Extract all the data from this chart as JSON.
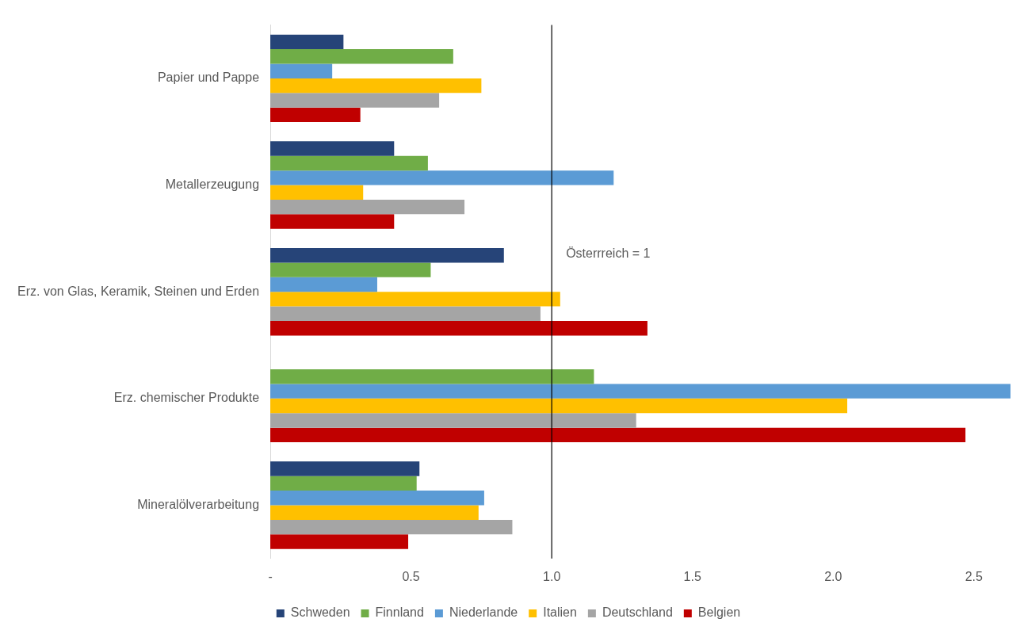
{
  "chart_data": {
    "type": "bar",
    "orientation": "horizontal",
    "categories": [
      "Papier und Pappe",
      "Metallerzeugung",
      "Erz. von Glas, Keramik, Steinen und Erden",
      "Erz. chemischer Produkte",
      "Mineralölverarbeitung"
    ],
    "series": [
      {
        "name": "Schweden",
        "color": "#264478",
        "values": [
          0.26,
          0.44,
          0.83,
          null,
          0.53
        ]
      },
      {
        "name": "Finnland",
        "color": "#70ad47",
        "values": [
          0.65,
          0.56,
          0.57,
          1.15,
          0.52
        ]
      },
      {
        "name": "Niederlande",
        "color": "#5b9bd5",
        "values": [
          0.22,
          1.22,
          0.38,
          2.63,
          0.76
        ]
      },
      {
        "name": "Italien",
        "color": "#ffc000",
        "values": [
          0.75,
          0.33,
          1.03,
          2.05,
          0.74
        ]
      },
      {
        "name": "Deutschland",
        "color": "#a5a5a5",
        "values": [
          0.6,
          0.69,
          0.96,
          1.3,
          0.86
        ]
      },
      {
        "name": "Belgien",
        "color": "#c00000",
        "values": [
          0.32,
          0.44,
          1.34,
          2.47,
          0.49
        ]
      }
    ],
    "xlim": [
      0,
      2.63
    ],
    "xticks": [
      {
        "value": 0,
        "label": "-"
      },
      {
        "value": 0.5,
        "label": "0.5"
      },
      {
        "value": 1,
        "label": "1.0"
      },
      {
        "value": 1.5,
        "label": "1.5"
      },
      {
        "value": 2,
        "label": "2.0"
      },
      {
        "value": 2.5,
        "label": "2.5"
      }
    ],
    "ref_lines": [
      {
        "axis": "x",
        "value": 1,
        "label": "Österrreich = 1",
        "color": "#000000"
      }
    ],
    "grid": false,
    "legend": "bottom"
  }
}
